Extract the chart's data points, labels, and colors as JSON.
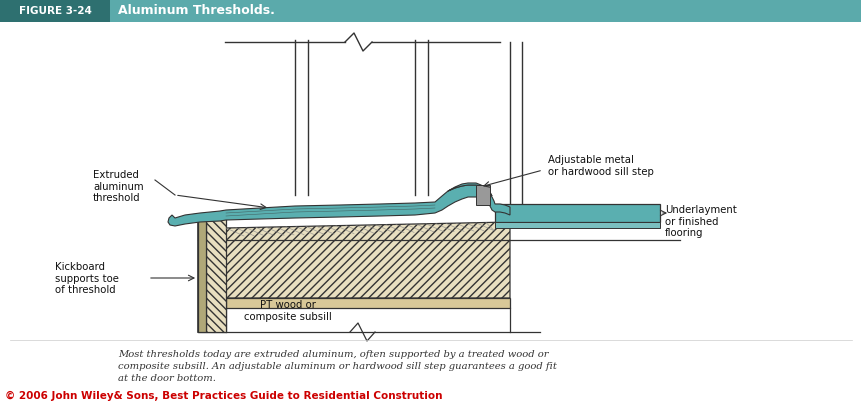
{
  "header_bg_color": "#5BAAAB",
  "header_label_bg": "#2e7070",
  "header_label_text": "FIGURE 3-24",
  "header_title_text": "Aluminum Thresholds.",
  "header_label_color": "#ffffff",
  "header_title_color": "#ffffff",
  "body_bg_color": "#ffffff",
  "footer_text": "© 2006 John Wiley& Sons, Best Practices Guide to Residential Constrution",
  "footer_color": "#cc0000",
  "caption_line1": "Most thresholds today are extruded aluminum, often supported by a treated wood or",
  "caption_line2": "composite subsill. An adjustable aluminum or hardwood sill step guarantees a good fit",
  "caption_line3": "at the door bottom.",
  "caption_color": "#333333",
  "label_extruded": "Extruded\naluminum\nthreshold",
  "label_kickboard": "Kickboard\nsupports toe\nof threshold",
  "label_pt_wood": "PT wood or\ncomposite subsill",
  "label_adjustable": "Adjustable metal\nor hardwood sill step",
  "label_underlayment": "Underlayment\nor finished\nflooring",
  "teal_color": "#5AAFB0",
  "line_color": "#333333",
  "wood_color": "#e8dfc0",
  "subsill_color": "#d8c898"
}
